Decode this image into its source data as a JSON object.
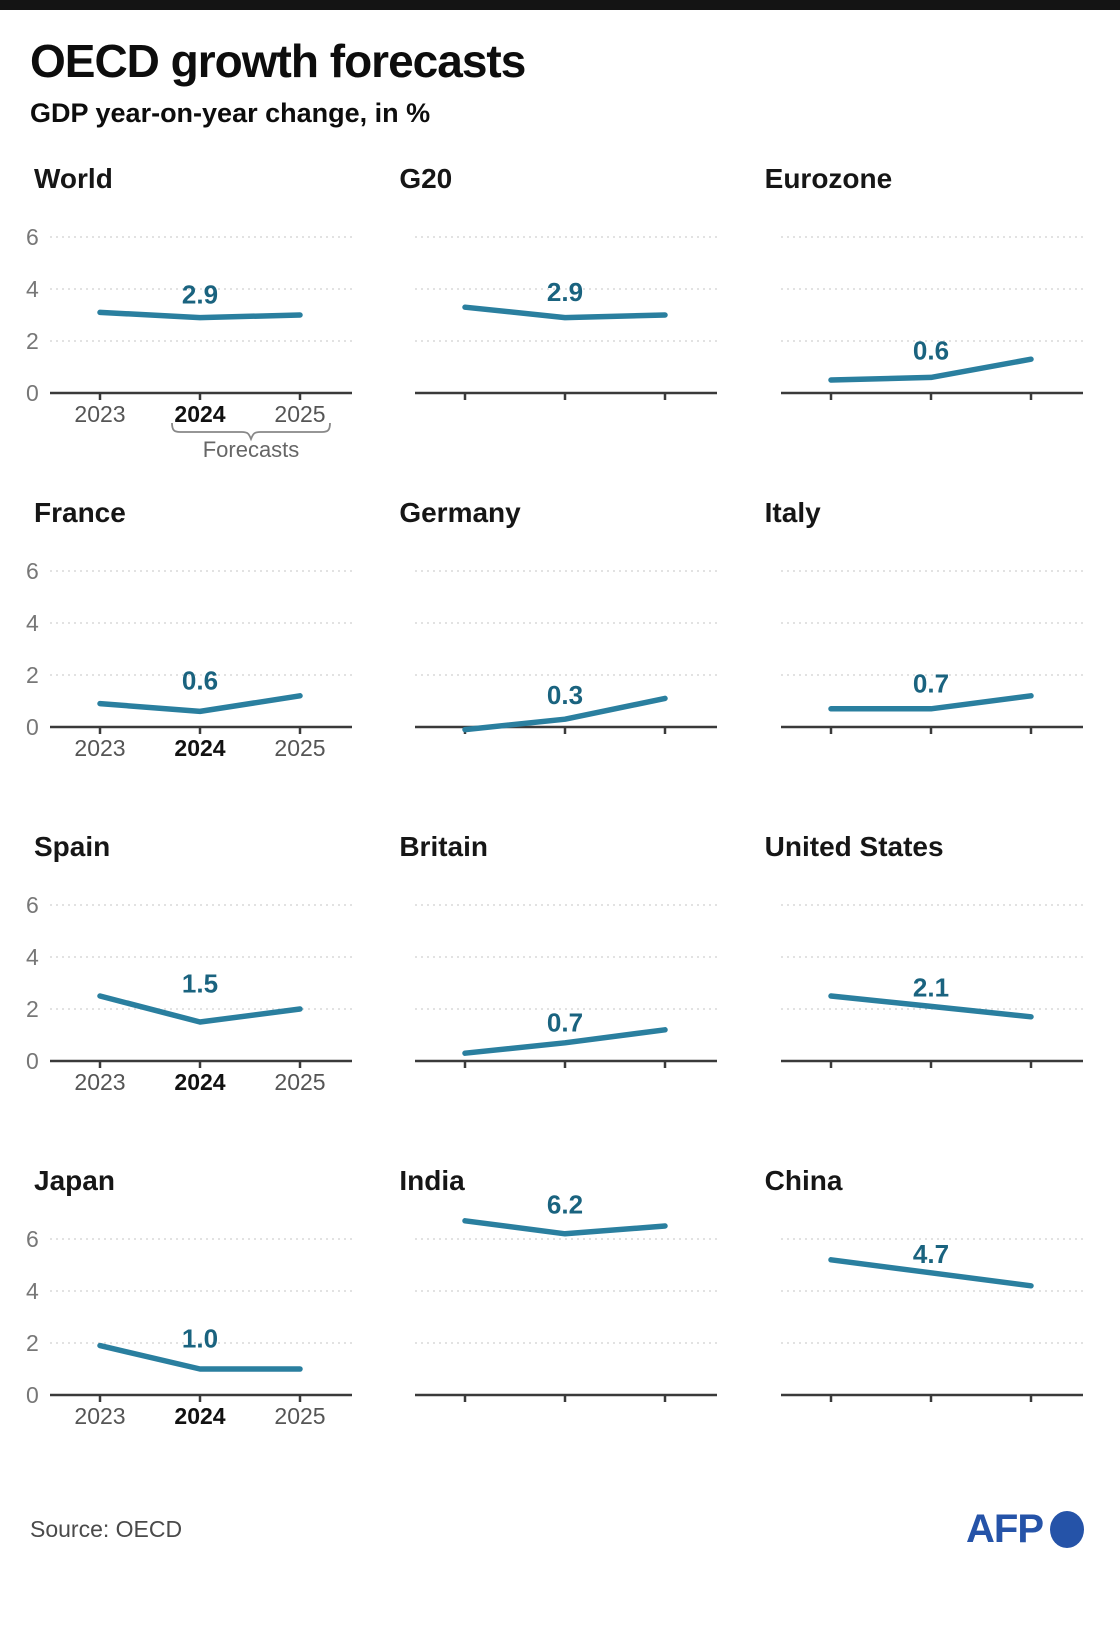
{
  "page": {
    "title": "OECD growth forecasts",
    "subtitle": "GDP year-on-year change, in %",
    "source": "Source: OECD",
    "afp_logo_text": "AFP"
  },
  "axis": {
    "years": [
      "2023",
      "2024",
      "2025"
    ],
    "yticks": [
      0,
      2,
      4,
      6
    ],
    "forecast_label": "Forecasts",
    "bold_year": "2024"
  },
  "colors": {
    "line": "#2a7f9f",
    "value_label": "#1a637f",
    "grid": "#d9d9d9",
    "axis": "#3a3a3a",
    "tick_label": "#555555",
    "bracket": "#888888",
    "afp_blue": "#2553a8"
  },
  "chart_data": [
    {
      "type": "line",
      "title": "World",
      "x": [
        "2023",
        "2024",
        "2025"
      ],
      "values": [
        3.1,
        2.9,
        3.0
      ],
      "label": "2.9",
      "ylim": [
        0,
        6
      ],
      "yticks": [
        0,
        2,
        4,
        6
      ]
    },
    {
      "type": "line",
      "title": "G20",
      "x": [
        "2023",
        "2024",
        "2025"
      ],
      "values": [
        3.3,
        2.9,
        3.0
      ],
      "label": "2.9",
      "ylim": [
        0,
        6
      ],
      "yticks": [
        0,
        2,
        4,
        6
      ]
    },
    {
      "type": "line",
      "title": "Eurozone",
      "x": [
        "2023",
        "2024",
        "2025"
      ],
      "values": [
        0.5,
        0.6,
        1.3
      ],
      "label": "0.6",
      "ylim": [
        0,
        6
      ],
      "yticks": [
        0,
        2,
        4,
        6
      ]
    },
    {
      "type": "line",
      "title": "France",
      "x": [
        "2023",
        "2024",
        "2025"
      ],
      "values": [
        0.9,
        0.6,
        1.2
      ],
      "label": "0.6",
      "ylim": [
        0,
        6
      ],
      "yticks": [
        0,
        2,
        4,
        6
      ]
    },
    {
      "type": "line",
      "title": "Germany",
      "x": [
        "2023",
        "2024",
        "2025"
      ],
      "values": [
        -0.1,
        0.3,
        1.1
      ],
      "label": "0.3",
      "ylim": [
        0,
        6
      ],
      "yticks": [
        0,
        2,
        4,
        6
      ]
    },
    {
      "type": "line",
      "title": "Italy",
      "x": [
        "2023",
        "2024",
        "2025"
      ],
      "values": [
        0.7,
        0.7,
        1.2
      ],
      "label": "0.7",
      "ylim": [
        0,
        6
      ],
      "yticks": [
        0,
        2,
        4,
        6
      ]
    },
    {
      "type": "line",
      "title": "Spain",
      "x": [
        "2023",
        "2024",
        "2025"
      ],
      "values": [
        2.5,
        1.5,
        2.0
      ],
      "label": "1.5",
      "ylim": [
        0,
        6
      ],
      "yticks": [
        0,
        2,
        4,
        6
      ]
    },
    {
      "type": "line",
      "title": "Britain",
      "x": [
        "2023",
        "2024",
        "2025"
      ],
      "values": [
        0.3,
        0.7,
        1.2
      ],
      "label": "0.7",
      "ylim": [
        0,
        6
      ],
      "yticks": [
        0,
        2,
        4,
        6
      ]
    },
    {
      "type": "line",
      "title": "United States",
      "x": [
        "2023",
        "2024",
        "2025"
      ],
      "values": [
        2.5,
        2.1,
        1.7
      ],
      "label": "2.1",
      "ylim": [
        0,
        6
      ],
      "yticks": [
        0,
        2,
        4,
        6
      ]
    },
    {
      "type": "line",
      "title": "Japan",
      "x": [
        "2023",
        "2024",
        "2025"
      ],
      "values": [
        1.9,
        1.0,
        1.0
      ],
      "label": "1.0",
      "ylim": [
        0,
        6
      ],
      "yticks": [
        0,
        2,
        4,
        6
      ]
    },
    {
      "type": "line",
      "title": "India",
      "x": [
        "2023",
        "2024",
        "2025"
      ],
      "values": [
        6.7,
        6.2,
        6.5
      ],
      "label": "6.2",
      "ylim": [
        0,
        6
      ],
      "yticks": [
        0,
        2,
        4,
        6
      ]
    },
    {
      "type": "line",
      "title": "China",
      "x": [
        "2023",
        "2024",
        "2025"
      ],
      "values": [
        5.2,
        4.7,
        4.2
      ],
      "label": "4.7",
      "ylim": [
        0,
        6
      ],
      "yticks": [
        0,
        2,
        4,
        6
      ]
    }
  ]
}
